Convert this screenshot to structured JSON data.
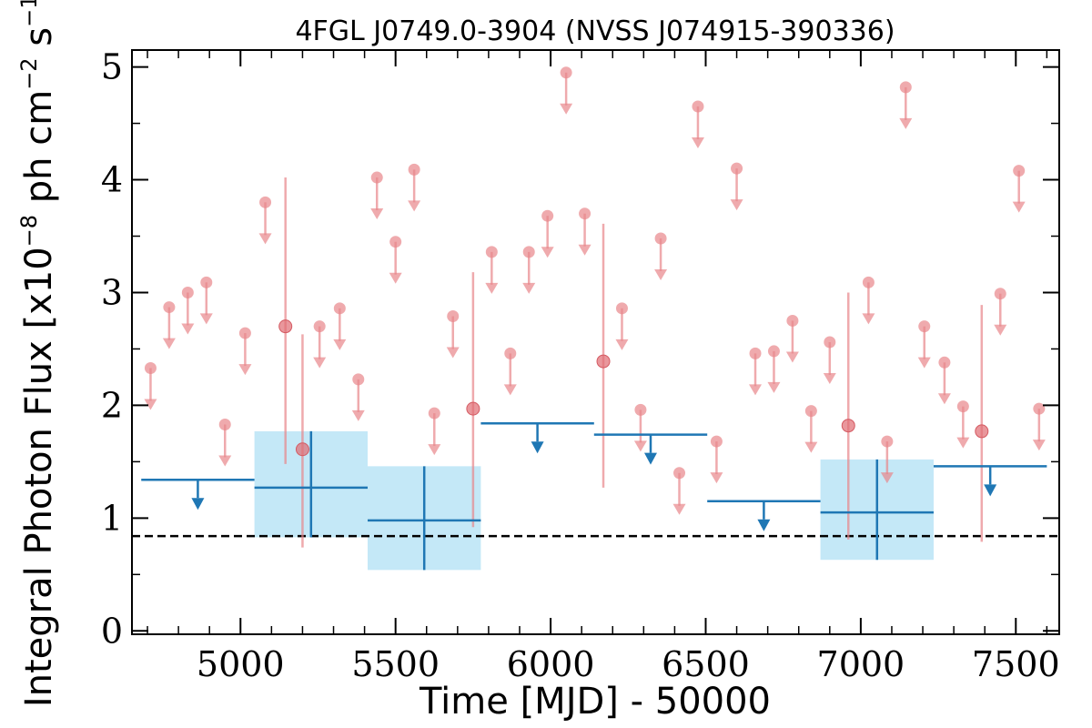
{
  "chart_data": {
    "type": "scatter",
    "title": "4FGL J0749.0-3904 (NVSS J074915-390336)",
    "xlabel": "Time [MJD] - 50000",
    "ylabel": {
      "main": "Integral Photon Flux [x10",
      "exp1": "−8",
      "mid": " ph cm",
      "exp2": "−2",
      "mid2": " s",
      "exp3": "−1",
      "end": "]"
    },
    "xlim": [
      4650,
      7640
    ],
    "ylim": [
      -0.03,
      5.15
    ],
    "xticks": [
      5000,
      5500,
      6000,
      6500,
      7000,
      7500
    ],
    "yticks": [
      0,
      1,
      2,
      3,
      4,
      5
    ],
    "grid": false,
    "colors": {
      "short_bins": "#e8868a",
      "long_bins": "#1f77b4",
      "long_bins_fill": "#c4e8f7",
      "baseline": "#000000"
    },
    "baseline_flux": 0.84,
    "long_bins": [
      {
        "x_start": 4680,
        "x_end": 5045,
        "flux": 1.34,
        "upper_limit": true
      },
      {
        "x_start": 5045,
        "x_end": 5410,
        "flux": 1.27,
        "err_low": 0.44,
        "err_high": 0.5,
        "upper_limit": false
      },
      {
        "x_start": 5410,
        "x_end": 5775,
        "flux": 0.98,
        "err_low": 0.44,
        "err_high": 0.48,
        "upper_limit": false
      },
      {
        "x_start": 5775,
        "x_end": 6140,
        "flux": 1.84,
        "upper_limit": true
      },
      {
        "x_start": 6140,
        "x_end": 6505,
        "flux": 1.74,
        "upper_limit": true
      },
      {
        "x_start": 6505,
        "x_end": 6870,
        "flux": 1.15,
        "upper_limit": true
      },
      {
        "x_start": 6870,
        "x_end": 7235,
        "flux": 1.05,
        "err_low": 0.42,
        "err_high": 0.47,
        "upper_limit": false
      },
      {
        "x_start": 7235,
        "x_end": 7600,
        "flux": 1.46,
        "upper_limit": true
      }
    ],
    "short_bins": {
      "upper_limits": [
        {
          "x": 4710,
          "y": 2.33
        },
        {
          "x": 4770,
          "y": 2.87
        },
        {
          "x": 4830,
          "y": 3.0
        },
        {
          "x": 4890,
          "y": 3.09
        },
        {
          "x": 4950,
          "y": 1.83
        },
        {
          "x": 5015,
          "y": 2.64
        },
        {
          "x": 5080,
          "y": 3.8
        },
        {
          "x": 5255,
          "y": 2.7
        },
        {
          "x": 5320,
          "y": 2.86
        },
        {
          "x": 5380,
          "y": 2.23
        },
        {
          "x": 5440,
          "y": 4.02
        },
        {
          "x": 5500,
          "y": 3.45
        },
        {
          "x": 5560,
          "y": 4.09
        },
        {
          "x": 5625,
          "y": 1.93
        },
        {
          "x": 5685,
          "y": 2.79
        },
        {
          "x": 5810,
          "y": 3.36
        },
        {
          "x": 5870,
          "y": 2.46
        },
        {
          "x": 5930,
          "y": 3.36
        },
        {
          "x": 5990,
          "y": 3.68
        },
        {
          "x": 6050,
          "y": 4.95
        },
        {
          "x": 6110,
          "y": 3.7
        },
        {
          "x": 6230,
          "y": 2.86
        },
        {
          "x": 6290,
          "y": 1.96
        },
        {
          "x": 6355,
          "y": 3.48
        },
        {
          "x": 6415,
          "y": 1.4
        },
        {
          "x": 6475,
          "y": 4.65
        },
        {
          "x": 6535,
          "y": 1.68
        },
        {
          "x": 6600,
          "y": 4.1
        },
        {
          "x": 6660,
          "y": 2.46
        },
        {
          "x": 6720,
          "y": 2.48
        },
        {
          "x": 6780,
          "y": 2.75
        },
        {
          "x": 6840,
          "y": 1.95
        },
        {
          "x": 6900,
          "y": 2.56
        },
        {
          "x": 7025,
          "y": 3.09
        },
        {
          "x": 7085,
          "y": 1.68
        },
        {
          "x": 7145,
          "y": 4.82
        },
        {
          "x": 7205,
          "y": 2.7
        },
        {
          "x": 7270,
          "y": 2.38
        },
        {
          "x": 7330,
          "y": 1.99
        },
        {
          "x": 7450,
          "y": 2.99
        },
        {
          "x": 7510,
          "y": 4.08
        },
        {
          "x": 7575,
          "y": 1.97
        }
      ],
      "detections": [
        {
          "x": 5145,
          "y": 2.7,
          "y_low": 1.48,
          "y_high": 4.02
        },
        {
          "x": 5200,
          "y": 1.61,
          "y_low": 0.74,
          "y_high": 2.63
        },
        {
          "x": 5750,
          "y": 1.97,
          "y_low": 0.92,
          "y_high": 3.18
        },
        {
          "x": 6170,
          "y": 2.39,
          "y_low": 1.27,
          "y_high": 3.61
        },
        {
          "x": 6960,
          "y": 1.82,
          "y_low": 0.81,
          "y_high": 3.0
        },
        {
          "x": 7390,
          "y": 1.77,
          "y_low": 0.79,
          "y_high": 2.89
        }
      ]
    }
  }
}
